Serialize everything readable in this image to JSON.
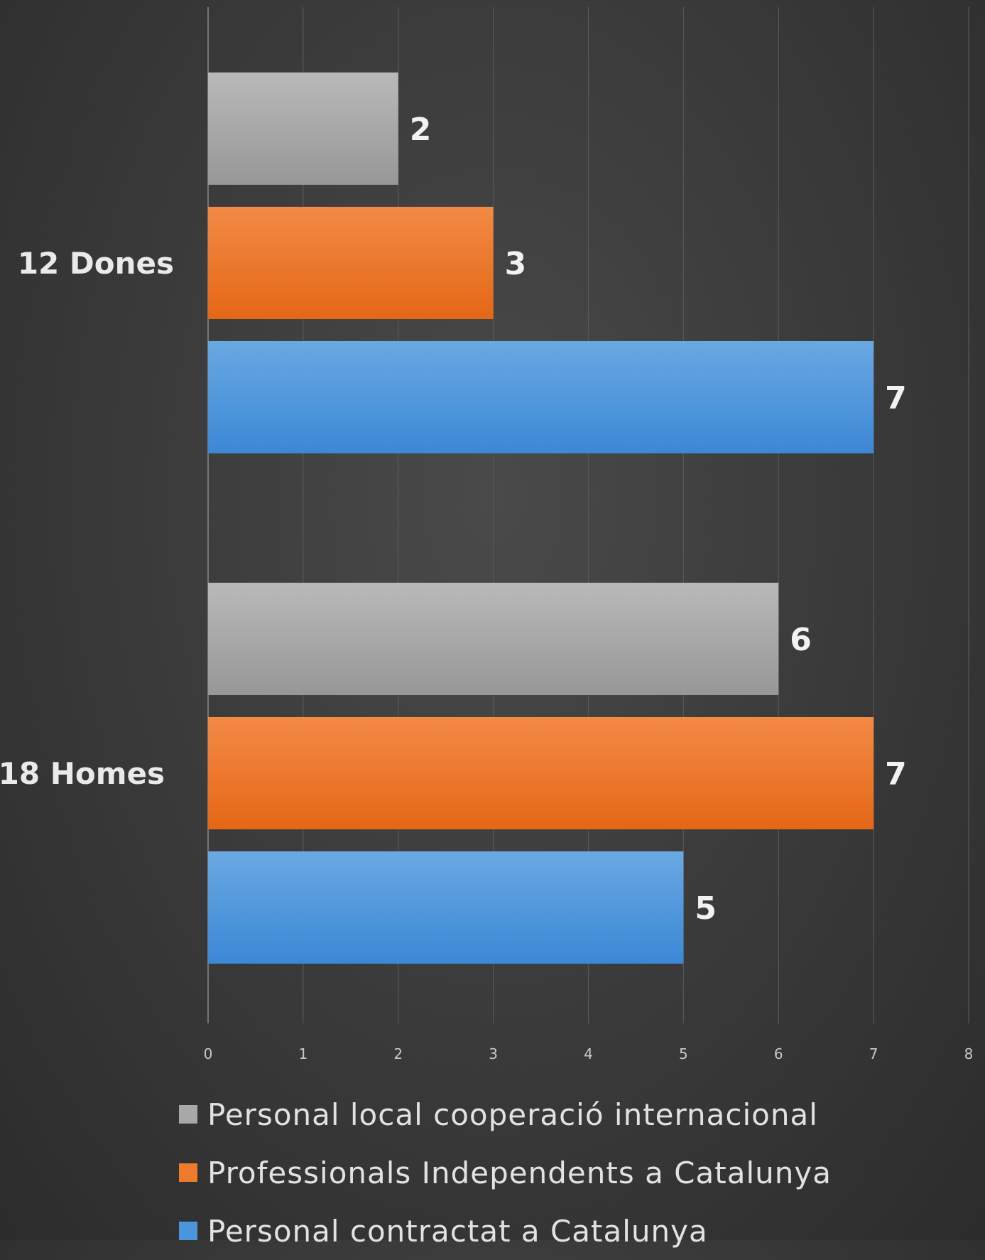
{
  "colors": {
    "Personal local cooperació internacional": "#a8a8a8",
    "Professionals Independents a Catalunya": "#ee7a2c",
    "Personal contractat a Catalunya": "#4a95dc"
  },
  "chart_data": {
    "type": "bar",
    "orientation": "horizontal",
    "categories": [
      "12 Dones",
      "18 Homes"
    ],
    "series": [
      {
        "name": "Personal local cooperació internacional",
        "values": [
          2,
          6
        ]
      },
      {
        "name": "Professionals Independents a Catalunya",
        "values": [
          3,
          7
        ]
      },
      {
        "name": "Personal contractat a Catalunya",
        "values": [
          7,
          5
        ]
      }
    ],
    "xlim": [
      0,
      8
    ],
    "x_ticks": [
      "0",
      "1",
      "2",
      "3",
      "4",
      "5",
      "6",
      "7",
      "8"
    ],
    "grid": true,
    "data_labels": true,
    "legend_position": "bottom"
  }
}
